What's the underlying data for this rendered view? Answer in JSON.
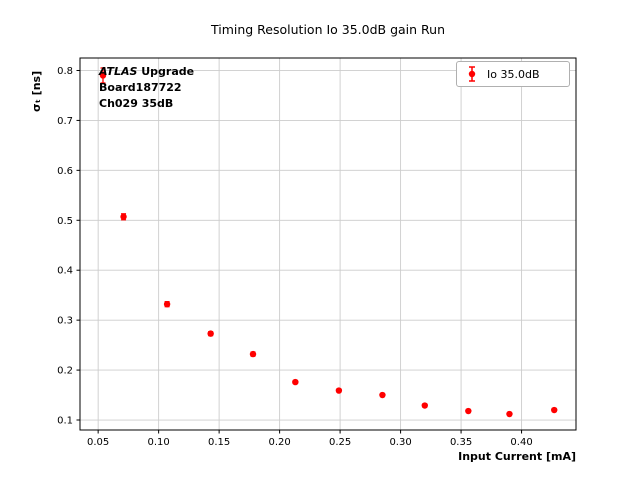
{
  "chart_data": {
    "type": "scatter",
    "title": "Timing Resolution Io 35.0dB gain Run",
    "xlabel": "Input Current [mA]",
    "ylabel": "σₜ [ns]",
    "grid": true,
    "xlim": [
      0.035,
      0.445
    ],
    "ylim": [
      0.08,
      0.825
    ],
    "xticks": [
      {
        "v": 0.05,
        "label": "0.05"
      },
      {
        "v": 0.1,
        "label": "0.10"
      },
      {
        "v": 0.15,
        "label": "0.15"
      },
      {
        "v": 0.2,
        "label": "0.20"
      },
      {
        "v": 0.25,
        "label": "0.25"
      },
      {
        "v": 0.3,
        "label": "0.30"
      },
      {
        "v": 0.35,
        "label": "0.35"
      },
      {
        "v": 0.4,
        "label": "0.40"
      }
    ],
    "yticks": [
      {
        "v": 0.1,
        "label": "0.1"
      },
      {
        "v": 0.2,
        "label": "0.2"
      },
      {
        "v": 0.3,
        "label": "0.3"
      },
      {
        "v": 0.4,
        "label": "0.4"
      },
      {
        "v": 0.5,
        "label": "0.5"
      },
      {
        "v": 0.6,
        "label": "0.6"
      },
      {
        "v": 0.7,
        "label": "0.7"
      },
      {
        "v": 0.8,
        "label": "0.8"
      }
    ],
    "legend": {
      "label": "Io 35.0dB",
      "position": "upper right"
    },
    "series": [
      {
        "name": "Io 35.0dB",
        "color": "#ff0000",
        "marker": "circle",
        "x": [
          0.054,
          0.071,
          0.107,
          0.143,
          0.178,
          0.213,
          0.249,
          0.285,
          0.32,
          0.356,
          0.39,
          0.427
        ],
        "y": [
          0.79,
          0.507,
          0.332,
          0.273,
          0.232,
          0.176,
          0.159,
          0.15,
          0.129,
          0.118,
          0.112,
          0.12
        ],
        "yerr": [
          0.015,
          0.006,
          0.005,
          0.004,
          0.004,
          0.003,
          0.003,
          0.003,
          0.003,
          0.003,
          0.003,
          0.003
        ]
      }
    ]
  },
  "annotation": {
    "brand": "ATLAS",
    "brand_suffix": " Upgrade",
    "board": "Board187722",
    "channel": "Ch029 35dB"
  }
}
